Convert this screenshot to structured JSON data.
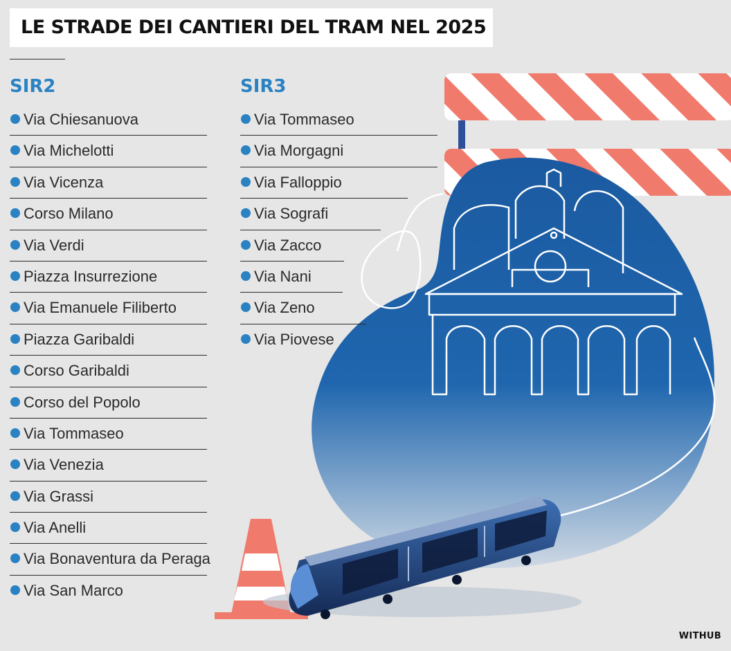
{
  "title": "LE STRADE DEI CANTIERI DEL TRAM NEL 2025",
  "sir2": {
    "heading": "SIR2",
    "items": [
      "Via Chiesanuova",
      "Via Michelotti",
      "Via Vicenza",
      "Corso Milano",
      "Via Verdi",
      "Piazza Insurrezione",
      "Via Emanuele Filiberto",
      "Piazza Garibaldi",
      "Corso Garibaldi",
      "Corso del Popolo",
      "Via Tommaseo",
      "Via Venezia",
      "Via Grassi",
      "Via Anelli",
      "Via Bonaventura da Peraga",
      "Via San Marco"
    ]
  },
  "sir3": {
    "heading": "SIR3",
    "items": [
      "Via Tommaseo",
      "Via Morgagni",
      "Via Falloppio",
      "Via Sografi",
      "Via Zacco",
      "Via Nani",
      "Via Zeno",
      "Via Piovese"
    ]
  },
  "credit": "WITHUB",
  "colors": {
    "accent": "#2a82c2",
    "blob": "#1b5fa5",
    "barrier_red": "#f07a6c",
    "cone_red": "#f07a6c"
  },
  "icons": [
    "bullet-dot-icon",
    "road-barrier-icon",
    "traffic-cone-icon",
    "tram-icon",
    "basilica-outline-icon"
  ]
}
